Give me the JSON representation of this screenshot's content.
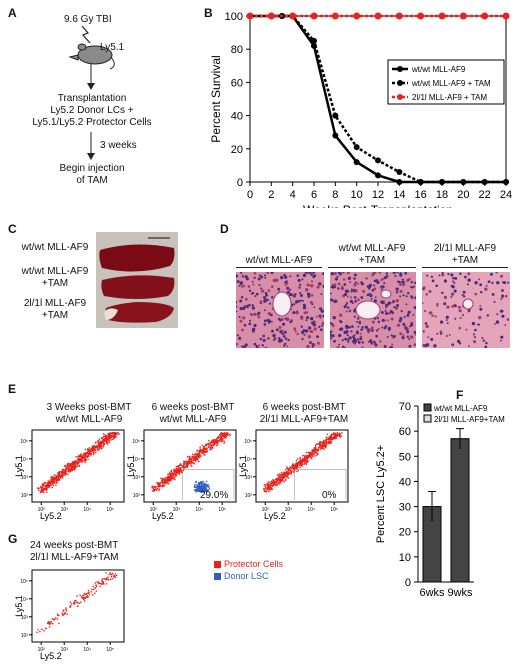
{
  "panels": {
    "a": {
      "label": "A",
      "dose": "9.6 Gy TBI",
      "mouse_strain": "Ly5.1",
      "step_transplant": [
        "Transplantation",
        "Ly5.2 Donor LCs +",
        "Ly5.1/Ly5.2 Protector Cells"
      ],
      "step_interval": "3 weeks",
      "step_inject": [
        "Begin injection",
        "of TAM"
      ]
    },
    "b": {
      "label": "B"
    },
    "c": {
      "label": "C",
      "spleen_labels": [
        [
          "wt/wt MLL-AF9"
        ],
        [
          "wt/wt MLL-AF9",
          "+TAM"
        ],
        [
          "2l/1l MLL-AF9",
          "+TAM"
        ]
      ]
    },
    "d": {
      "label": "D",
      "headers": [
        [
          "wt/wt MLL-AF9"
        ],
        [
          "wt/wt MLL-AF9",
          "+TAM"
        ],
        [
          "2l/1l MLL-AF9",
          "+TAM"
        ]
      ]
    },
    "e": {
      "label": "E",
      "plots": [
        {
          "title": [
            "3 Weeks post-BMT",
            "wt/wt MLL-AF9"
          ],
          "percent": ""
        },
        {
          "title": [
            "6 weeks post-BMT",
            "wt/wt MLL-AF9"
          ],
          "percent": "29.0%"
        },
        {
          "title": [
            "6 weeks post-BMT",
            "2l/1l MLL-AF9+TAM"
          ],
          "percent": "0%"
        }
      ],
      "ylabel": "Ly5.1",
      "xlabel": "Ly5.2",
      "ticks": [
        "10²",
        "10³",
        "10⁴",
        "10⁵"
      ]
    },
    "f": {
      "label": "F"
    },
    "g": {
      "label": "G",
      "title": [
        "24 weeks post-BMT",
        "2l/1l MLL-AF9+TAM"
      ],
      "legend": [
        {
          "name": "Protector Cells",
          "color": "#e8231c"
        },
        {
          "name": "Donor LSC",
          "color": "#2f5fc4"
        }
      ],
      "ylabel": "Ly5.1",
      "xlabel": "Ly5.2"
    }
  },
  "chart_data": [
    {
      "panel": "B",
      "type": "line",
      "xlabel": "Weeks Post-Transplantation",
      "ylabel": "Percent Survival",
      "xlim": [
        0,
        24
      ],
      "ylim": [
        0,
        100
      ],
      "xticks": [
        0,
        2,
        4,
        6,
        8,
        10,
        12,
        14,
        16,
        18,
        20,
        22,
        24
      ],
      "yticks": [
        0,
        20,
        40,
        60,
        80,
        100
      ],
      "legend_position": "right",
      "series": [
        {
          "name": "wt/wt MLL-AF9",
          "color": "#000000",
          "style": "solid",
          "x": [
            0,
            2,
            3,
            4,
            6,
            8,
            10,
            12,
            14,
            16,
            18,
            20,
            22,
            24
          ],
          "y": [
            100,
            100,
            100,
            100,
            82,
            28,
            12,
            4,
            0,
            0,
            0,
            0,
            0,
            0
          ]
        },
        {
          "name": "wt/wt MLL-AF9 + TAM",
          "color": "#000000",
          "style": "dotted",
          "x": [
            0,
            2,
            3,
            4,
            6,
            8,
            10,
            12,
            14,
            16,
            18,
            20,
            22,
            24
          ],
          "y": [
            100,
            100,
            100,
            100,
            85,
            40,
            21,
            13,
            6,
            0,
            0,
            0,
            0,
            0
          ]
        },
        {
          "name": "2l/1l MLL-AF9 + TAM",
          "color": "#e8231c",
          "style": "dotted",
          "x": [
            0,
            2,
            4,
            6,
            8,
            10,
            12,
            14,
            16,
            18,
            20,
            22,
            24
          ],
          "y": [
            100,
            100,
            100,
            100,
            100,
            100,
            100,
            100,
            100,
            100,
            100,
            100,
            100
          ]
        }
      ]
    },
    {
      "panel": "F",
      "type": "bar",
      "ylabel": "Percent LSC Ly5.2+",
      "ylim": [
        0,
        70
      ],
      "yticks": [
        0,
        10,
        20,
        30,
        40,
        50,
        60,
        70
      ],
      "categories": [
        "6wks",
        "9wks"
      ],
      "legend_position": "top",
      "series": [
        {
          "name": "wt/wt MLL-AF9",
          "color": "#444444",
          "values": [
            30,
            57
          ],
          "errors": [
            6,
            4
          ]
        },
        {
          "name": "2l/1l MLL-AF9+TAM",
          "color": "#dddddd",
          "values": [
            0,
            0
          ],
          "errors": [
            0,
            0
          ]
        }
      ]
    }
  ]
}
